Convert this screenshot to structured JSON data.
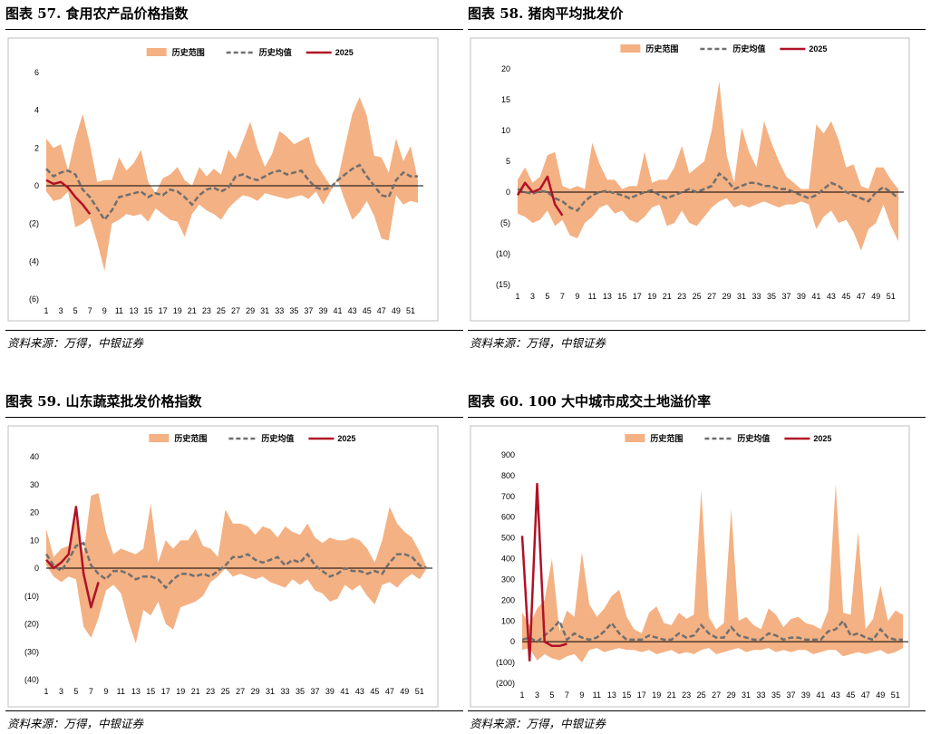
{
  "colors": {
    "range": "#F4B183",
    "avg": "#6F6F6F",
    "current": "#B01226"
  },
  "panels": [
    {
      "title": "图表  57. 食用农产品价格指数",
      "source": "资料来源：万得，中银证券",
      "chart_data": {
        "type": "line",
        "legend": [
          "历史范围",
          "历史均值",
          "2025"
        ],
        "x_ticks": [
          "1",
          "3",
          "5",
          "7",
          "9",
          "11",
          "13",
          "15",
          "17",
          "19",
          "21",
          "23",
          "25",
          "27",
          "29",
          "31",
          "33",
          "35",
          "37",
          "39",
          "41",
          "43",
          "45",
          "47",
          "49",
          "51"
        ],
        "y_ticks": [
          "6",
          "4",
          "2",
          "0",
          "(2)",
          "(4)",
          "(6)"
        ],
        "ylim": [
          -6,
          6
        ],
        "weeks": 52,
        "series": [
          {
            "name": "历史范围",
            "kind": "band",
            "upper": [
              2.5,
              2.0,
              2.2,
              0.8,
              2.5,
              3.8,
              2.2,
              0.2,
              0.3,
              0.3,
              1.5,
              0.8,
              1.2,
              1.9,
              0.2,
              -0.4,
              0.4,
              0.6,
              1.0,
              0.3,
              0.0,
              1.0,
              0.5,
              0.9,
              0.6,
              1.9,
              1.4,
              2.4,
              3.4,
              2.0,
              1.0,
              1.7,
              2.9,
              2.6,
              2.2,
              2.4,
              2.6,
              1.2,
              0.6,
              0.0,
              0.3,
              2.1,
              3.8,
              4.7,
              3.7,
              1.6,
              1.5,
              0.7,
              2.5,
              1.3,
              2.1,
              0.3
            ],
            "lower": [
              -0.3,
              -0.8,
              -0.7,
              -0.3,
              -2.2,
              -2.0,
              -1.7,
              -3.0,
              -4.5,
              -2.0,
              -1.8,
              -1.5,
              -1.6,
              -1.5,
              -1.9,
              -1.2,
              -1.5,
              -1.8,
              -1.9,
              -2.7,
              -1.5,
              -1.0,
              -1.3,
              -1.5,
              -1.8,
              -1.2,
              -0.8,
              -0.5,
              -0.6,
              -0.8,
              -0.4,
              -0.5,
              -0.6,
              -0.7,
              -0.6,
              -0.5,
              -0.7,
              -0.3,
              -1.0,
              -0.3,
              0.3,
              -0.8,
              -1.8,
              -1.4,
              -0.8,
              -1.6,
              -2.8,
              -2.9,
              -0.5,
              -1.0,
              -0.8,
              -0.9
            ]
          },
          {
            "name": "历史均值",
            "kind": "dashed",
            "values": [
              0.9,
              0.5,
              0.7,
              0.8,
              0.6,
              -0.2,
              -0.6,
              -1.2,
              -1.8,
              -1.3,
              -0.6,
              -0.5,
              -0.4,
              -0.3,
              -0.6,
              -0.4,
              -0.5,
              -0.2,
              -0.3,
              -0.6,
              -1.0,
              -0.5,
              -0.2,
              -0.1,
              -0.3,
              -0.1,
              0.5,
              0.6,
              0.4,
              0.3,
              0.5,
              0.7,
              0.8,
              0.6,
              0.7,
              0.8,
              0.3,
              -0.1,
              -0.2,
              -0.1,
              0.3,
              0.6,
              0.9,
              1.1,
              0.5,
              0.0,
              -0.5,
              -0.6,
              0.3,
              0.7,
              0.5,
              0.5
            ]
          },
          {
            "name": "2025",
            "kind": "solid",
            "values": [
              0.3,
              0.1,
              0.2,
              -0.1,
              -0.6,
              -1.0,
              -1.5
            ]
          }
        ]
      }
    },
    {
      "title": "图表  58. 猪肉平均批发价",
      "source": "资料来源：万得，中银证券",
      "chart_data": {
        "type": "line",
        "legend": [
          "历史范围",
          "历史均值",
          "2025"
        ],
        "x_ticks": [
          "1",
          "3",
          "5",
          "7",
          "9",
          "11",
          "13",
          "15",
          "17",
          "19",
          "21",
          "23",
          "25",
          "27",
          "29",
          "31",
          "33",
          "35",
          "37",
          "39",
          "41",
          "43",
          "45",
          "47",
          "49",
          "51"
        ],
        "y_ticks": [
          "20",
          "15",
          "10",
          "5",
          "0",
          "(5)",
          "(10)",
          "(15)"
        ],
        "ylim": [
          -15,
          20
        ],
        "weeks": 52,
        "series": [
          {
            "name": "历史范围",
            "kind": "band",
            "upper": [
              2.0,
              4.0,
              1.5,
              2.5,
              6.0,
              6.5,
              1.0,
              0.5,
              1.0,
              0.5,
              8.0,
              4.5,
              2.0,
              2.0,
              0.5,
              1.0,
              1.0,
              6.5,
              1.5,
              2.0,
              2.0,
              4.0,
              7.5,
              3.0,
              4.0,
              5.0,
              10.0,
              18.0,
              6.0,
              1.5,
              10.5,
              6.5,
              4.0,
              11.5,
              8.0,
              5.0,
              2.5,
              1.5,
              0.5,
              0.5,
              11.0,
              9.5,
              11.5,
              8.5,
              4.0,
              4.5,
              1.0,
              0.5,
              4.0,
              4.0,
              2.0,
              0.5
            ],
            "lower": [
              -3.5,
              -4.0,
              -5.0,
              -4.5,
              -3.0,
              -5.5,
              -4.5,
              -7.0,
              -7.5,
              -5.0,
              -4.0,
              -2.5,
              -2.0,
              -3.5,
              -3.0,
              -4.5,
              -5.0,
              -4.0,
              -2.5,
              -2.0,
              -5.5,
              -5.0,
              -3.0,
              -5.0,
              -5.5,
              -4.0,
              -2.5,
              -1.5,
              -1.0,
              -2.5,
              -2.0,
              -2.5,
              -2.0,
              -1.5,
              -2.0,
              -2.5,
              -2.0,
              -2.0,
              -1.5,
              -2.0,
              -6.0,
              -4.0,
              -3.0,
              -5.0,
              -4.5,
              -6.5,
              -9.5,
              -6.0,
              -5.0,
              -2.0,
              -5.5,
              -8.0
            ]
          },
          {
            "name": "历史均值",
            "kind": "dashed",
            "values": [
              0.5,
              0.0,
              -0.3,
              0.2,
              0.0,
              -1.0,
              -1.5,
              -2.5,
              -3.0,
              -1.5,
              -0.5,
              0.0,
              0.2,
              -0.2,
              -0.5,
              -1.0,
              -0.5,
              0.0,
              0.3,
              -0.5,
              -1.0,
              -0.5,
              0.0,
              0.5,
              0.0,
              0.5,
              1.0,
              3.0,
              2.0,
              0.5,
              1.0,
              1.5,
              1.5,
              1.0,
              1.0,
              0.5,
              0.5,
              0.0,
              -0.5,
              -1.0,
              -0.5,
              0.5,
              1.5,
              1.0,
              0.0,
              -0.5,
              -1.0,
              -1.5,
              0.0,
              0.8,
              0.0,
              -1.0
            ]
          },
          {
            "name": "2025",
            "kind": "solid",
            "values": [
              -0.5,
              1.5,
              0.0,
              0.5,
              2.5,
              -2.0,
              -3.8
            ]
          }
        ]
      }
    },
    {
      "title": "图表  59. 山东蔬菜批发价格指数",
      "source": "资料来源：万得，中银证券",
      "chart_data": {
        "type": "line",
        "legend": [
          "历史范围",
          "历史均值",
          "2025"
        ],
        "x_ticks": [
          "1",
          "3",
          "5",
          "7",
          "9",
          "11",
          "13",
          "15",
          "17",
          "19",
          "21",
          "23",
          "25",
          "27",
          "29",
          "31",
          "33",
          "35",
          "37",
          "39",
          "41",
          "43",
          "45",
          "47",
          "49",
          "51"
        ],
        "y_ticks": [
          "40",
          "30",
          "20",
          "10",
          "0",
          "(10)",
          "(20)",
          "(30)",
          "(40)"
        ],
        "ylim": [
          -40,
          40
        ],
        "weeks": 52,
        "series": [
          {
            "name": "历史范围",
            "kind": "band",
            "upper": [
              14.0,
              4.0,
              7.0,
              8.0,
              18.0,
              5.0,
              26.0,
              27.0,
              13.0,
              5.0,
              7.0,
              6.0,
              5.0,
              7.0,
              23.0,
              2.0,
              10.0,
              7.0,
              10.0,
              10.0,
              14.0,
              8.0,
              7.0,
              4.0,
              21.0,
              16.0,
              16.0,
              15.0,
              12.0,
              15.0,
              14.0,
              11.0,
              15.0,
              13.0,
              12.0,
              16.0,
              11.0,
              9.0,
              11.0,
              10.0,
              10.0,
              11.0,
              10.0,
              7.0,
              2.0,
              10.0,
              22.0,
              16.0,
              13.0,
              11.0,
              6.0,
              0.0
            ],
            "lower": [
              1.0,
              -3.0,
              -5.0,
              -3.0,
              -4.0,
              -21.0,
              -25.0,
              -18.0,
              -8.0,
              -6.0,
              -9.0,
              -19.0,
              -27.0,
              -15.0,
              -17.0,
              -12.0,
              -20.0,
              -22.0,
              -14.0,
              -13.0,
              -12.0,
              -10.0,
              -5.0,
              -3.0,
              0.0,
              -3.0,
              -2.0,
              -3.0,
              -4.0,
              -3.0,
              -5.0,
              -6.0,
              -7.0,
              -4.0,
              -6.0,
              -4.0,
              -8.0,
              -9.0,
              -12.0,
              -11.0,
              -6.0,
              -8.0,
              -6.0,
              -10.0,
              -13.0,
              -6.0,
              -5.0,
              -7.0,
              -4.0,
              -2.0,
              -4.0,
              0.0
            ]
          },
          {
            "name": "历史均值",
            "kind": "dashed",
            "values": [
              5.0,
              1.0,
              -1.0,
              3.0,
              8.0,
              9.0,
              1.0,
              -2.0,
              -4.0,
              -1.0,
              -1.0,
              -2.0,
              -4.0,
              -3.0,
              -3.0,
              -4.0,
              -7.0,
              -4.0,
              -2.0,
              -2.0,
              -3.0,
              -2.0,
              -3.0,
              -1.0,
              1.0,
              4.0,
              4.0,
              5.0,
              3.0,
              2.0,
              3.0,
              4.0,
              1.0,
              3.0,
              2.0,
              5.0,
              1.0,
              -1.0,
              -3.0,
              -2.0,
              0.0,
              -1.0,
              -1.0,
              -2.0,
              -1.0,
              -2.0,
              2.0,
              5.0,
              5.0,
              4.0,
              1.0,
              0.0
            ]
          },
          {
            "name": "2025",
            "kind": "solid",
            "values": [
              3.0,
              0.0,
              2.0,
              5.0,
              22.0,
              -2.0,
              -14.0,
              -5.0
            ]
          }
        ]
      }
    },
    {
      "title": "图表  60. 100 大中城市成交土地溢价率",
      "source": "资料来源：万得，中银证券",
      "chart_data": {
        "type": "line",
        "legend": [
          "历史范围",
          "历史均值",
          "2025"
        ],
        "x_ticks": [
          "1",
          "3",
          "5",
          "7",
          "9",
          "11",
          "13",
          "15",
          "17",
          "19",
          "21",
          "23",
          "25",
          "27",
          "29",
          "31",
          "33",
          "35",
          "37",
          "39",
          "41",
          "43",
          "45",
          "47",
          "49",
          "51"
        ],
        "y_ticks": [
          "900",
          "800",
          "700",
          "600",
          "500",
          "400",
          "300",
          "200",
          "100",
          "0",
          "(100)",
          "(200)"
        ],
        "ylim": [
          -200,
          900
        ],
        "weeks": 52,
        "series": [
          {
            "name": "历史范围",
            "kind": "band",
            "upper": [
              140,
              80,
              160,
              200,
              400,
              50,
              150,
              120,
              430,
              180,
              120,
              160,
              220,
              250,
              120,
              60,
              40,
              140,
              170,
              90,
              80,
              140,
              110,
              130,
              730,
              120,
              60,
              90,
              640,
              100,
              120,
              80,
              60,
              160,
              130,
              70,
              110,
              120,
              90,
              80,
              60,
              150,
              760,
              140,
              130,
              530,
              60,
              110,
              270,
              100,
              150,
              130
            ],
            "lower": [
              -40,
              -30,
              -90,
              -60,
              -80,
              -90,
              -70,
              -60,
              -100,
              -40,
              -30,
              -50,
              -40,
              -30,
              -40,
              -40,
              -50,
              -40,
              -60,
              -50,
              -40,
              -60,
              -50,
              -60,
              -40,
              -30,
              -60,
              -50,
              -40,
              -30,
              -50,
              -40,
              -40,
              -30,
              -50,
              -40,
              -50,
              -40,
              -40,
              -60,
              -50,
              -40,
              -40,
              -70,
              -60,
              -50,
              -60,
              -50,
              -40,
              -60,
              -50,
              -30
            ]
          },
          {
            "name": "历史均值",
            "kind": "dashed",
            "values": [
              10,
              20,
              0,
              30,
              60,
              100,
              10,
              40,
              20,
              10,
              20,
              50,
              90,
              40,
              10,
              10,
              10,
              30,
              20,
              10,
              10,
              40,
              20,
              30,
              80,
              40,
              20,
              20,
              70,
              30,
              20,
              10,
              10,
              40,
              30,
              10,
              20,
              20,
              10,
              10,
              10,
              50,
              60,
              100,
              30,
              40,
              20,
              10,
              60,
              20,
              10,
              10
            ]
          },
          {
            "name": "2025",
            "kind": "solid",
            "values": [
              510,
              -90,
              760,
              0,
              -20,
              -20,
              -10
            ]
          }
        ]
      }
    }
  ]
}
